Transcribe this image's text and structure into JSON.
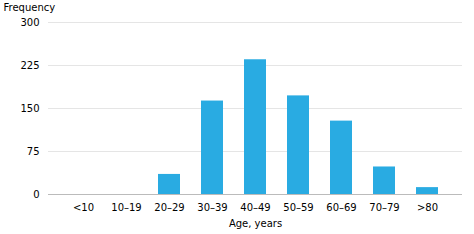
{
  "chart_data": {
    "type": "bar",
    "categories": [
      "<10",
      "10–19",
      "20–29",
      "30–39",
      "40–49",
      "50–59",
      "60–69",
      "70–79",
      ">80"
    ],
    "values": [
      0,
      0,
      35,
      163,
      235,
      172,
      128,
      48,
      12
    ],
    "color": "#29ABE2",
    "xlabel": "Age, years",
    "ylabel": "Frequency",
    "ylim": [
      0,
      300
    ],
    "yticks": [
      0,
      75,
      150,
      225,
      300
    ],
    "grid": true
  }
}
